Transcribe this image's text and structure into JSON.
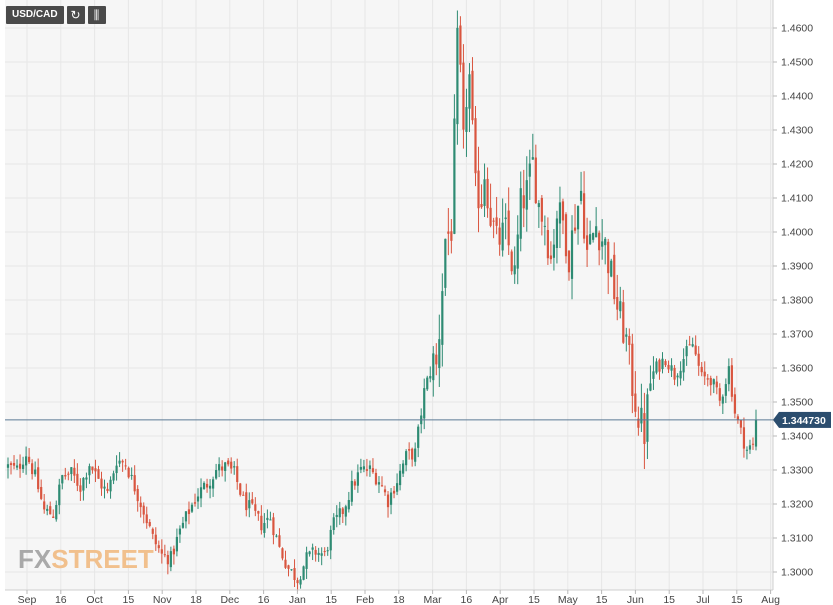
{
  "toolbar": {
    "symbol": "USD/CAD",
    "icons": [
      "refresh-icon",
      "indicators-icon"
    ]
  },
  "logo": {
    "fx": "FX",
    "street": "STREET"
  },
  "colors": {
    "up": "#2e8b73",
    "down": "#d9553f",
    "price_line": "#5b7a95",
    "price_label_bg": "#2b4d6e",
    "grid": "#e7e7e7",
    "axis_text": "#444444"
  },
  "chart_data": {
    "type": "candlestick",
    "symbol": "USD/CAD",
    "ylim": [
      1.295,
      1.467
    ],
    "y_ticks": [
      "1.3000",
      "1.3100",
      "1.3200",
      "1.3300",
      "1.3400",
      "1.3500",
      "1.3600",
      "1.3700",
      "1.3800",
      "1.3900",
      "1.4000",
      "1.4100",
      "1.4200",
      "1.4300",
      "1.4400",
      "1.4500",
      "1.4600"
    ],
    "x_ticks": [
      "Sep",
      "16",
      "Oct",
      "15",
      "Nov",
      "18",
      "Dec",
      "16",
      "Jan",
      "15",
      "Feb",
      "18",
      "Mar",
      "16",
      "Apr",
      "15",
      "May",
      "15",
      "Jun",
      "15",
      "Jul",
      "15",
      "Aug"
    ],
    "current_price": "1.344730",
    "close_path": [
      [
        0,
        1.331
      ],
      [
        3,
        1.33
      ],
      [
        6,
        1.335
      ],
      [
        9,
        1.328
      ],
      [
        12,
        1.318
      ],
      [
        15,
        1.317
      ],
      [
        18,
        1.328
      ],
      [
        21,
        1.329
      ],
      [
        24,
        1.325
      ],
      [
        27,
        1.332
      ],
      [
        30,
        1.327
      ],
      [
        33,
        1.323
      ],
      [
        36,
        1.333
      ],
      [
        39,
        1.332
      ],
      [
        42,
        1.325
      ],
      [
        45,
        1.318
      ],
      [
        48,
        1.31
      ],
      [
        51,
        1.305
      ],
      [
        54,
        1.304
      ],
      [
        57,
        1.312
      ],
      [
        60,
        1.318
      ],
      [
        63,
        1.323
      ],
      [
        66,
        1.326
      ],
      [
        69,
        1.33
      ],
      [
        72,
        1.331
      ],
      [
        75,
        1.329
      ],
      [
        78,
        1.321
      ],
      [
        81,
        1.318
      ],
      [
        84,
        1.314
      ],
      [
        87,
        1.316
      ],
      [
        90,
        1.307
      ],
      [
        93,
        1.301
      ],
      [
        96,
        1.298
      ],
      [
        99,
        1.304
      ],
      [
        102,
        1.306
      ],
      [
        105,
        1.305
      ],
      [
        108,
        1.314
      ],
      [
        111,
        1.318
      ],
      [
        114,
        1.325
      ],
      [
        117,
        1.33
      ],
      [
        120,
        1.33
      ],
      [
        123,
        1.327
      ],
      [
        126,
        1.321
      ],
      [
        129,
        1.327
      ],
      [
        132,
        1.334
      ],
      [
        135,
        1.335
      ],
      [
        138,
        1.353
      ],
      [
        141,
        1.362
      ],
      [
        142,
        1.36
      ],
      [
        143,
        1.371
      ],
      [
        145,
        1.398
      ],
      [
        147,
        1.401
      ],
      [
        149,
        1.455
      ],
      [
        150,
        1.445
      ],
      [
        151,
        1.425
      ],
      [
        152,
        1.44
      ],
      [
        153,
        1.445
      ],
      [
        155,
        1.412
      ],
      [
        157,
        1.41
      ],
      [
        158,
        1.418
      ],
      [
        160,
        1.405
      ],
      [
        162,
        1.397
      ],
      [
        165,
        1.4
      ],
      [
        168,
        1.387
      ],
      [
        170,
        1.408
      ],
      [
        172,
        1.412
      ],
      [
        174,
        1.42
      ],
      [
        176,
        1.408
      ],
      [
        178,
        1.403
      ],
      [
        180,
        1.392
      ],
      [
        182,
        1.406
      ],
      [
        184,
        1.403
      ],
      [
        186,
        1.393
      ],
      [
        188,
        1.404
      ],
      [
        190,
        1.412
      ],
      [
        192,
        1.394
      ],
      [
        195,
        1.402
      ],
      [
        198,
        1.396
      ],
      [
        200,
        1.387
      ],
      [
        202,
        1.378
      ],
      [
        205,
        1.368
      ],
      [
        207,
        1.355
      ],
      [
        209,
        1.346
      ],
      [
        211,
        1.341
      ],
      [
        213,
        1.356
      ],
      [
        215,
        1.36
      ],
      [
        218,
        1.363
      ],
      [
        221,
        1.358
      ],
      [
        224,
        1.363
      ],
      [
        227,
        1.367
      ],
      [
        230,
        1.357
      ],
      [
        233,
        1.357
      ],
      [
        236,
        1.35
      ],
      [
        239,
        1.36
      ],
      [
        241,
        1.347
      ],
      [
        243,
        1.341
      ],
      [
        245,
        1.336
      ],
      [
        247,
        1.337
      ],
      [
        248,
        1.345
      ]
    ]
  }
}
